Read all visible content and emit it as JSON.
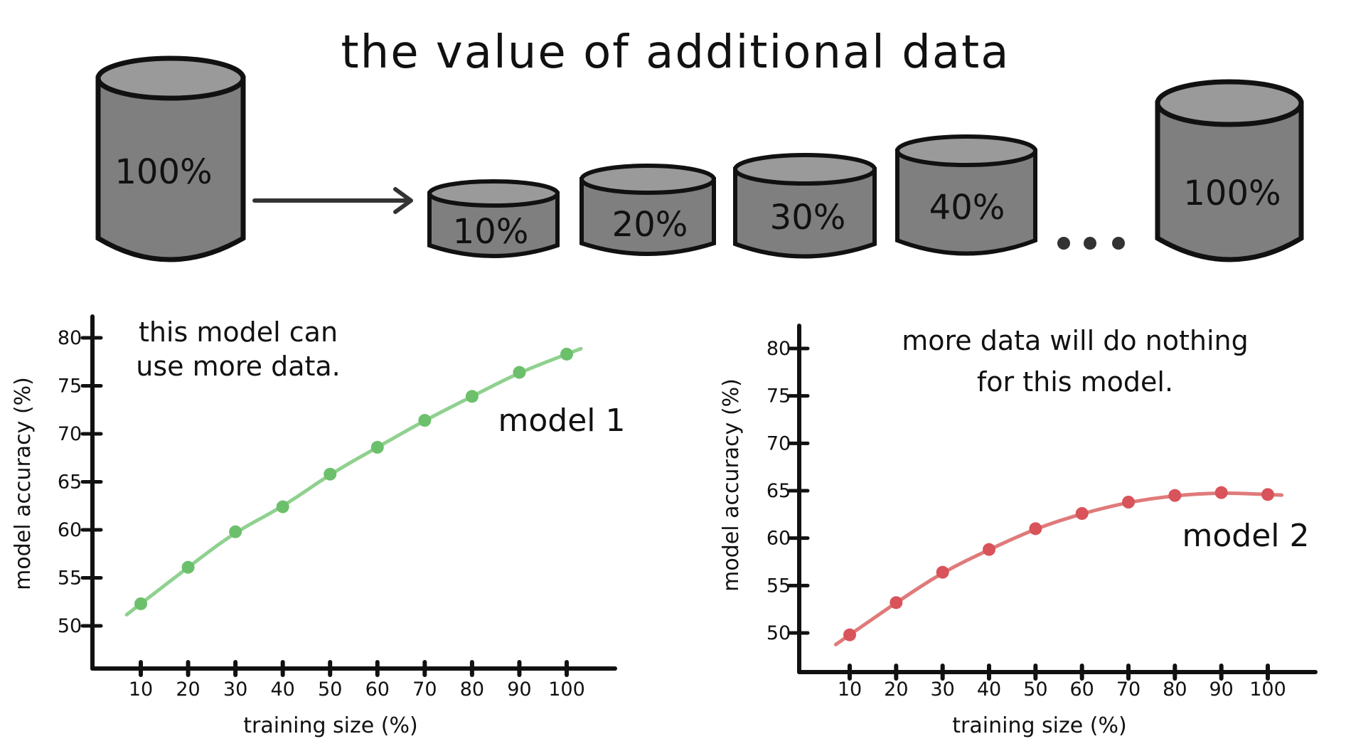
{
  "title": "the value of additional data",
  "cylinders": {
    "source_label": "100%",
    "split_labels": [
      "10%",
      "20%",
      "30%",
      "40%"
    ],
    "ellipsis": "...",
    "full_label": "100%",
    "fill": "#7f7f7f",
    "top_fill": "#9a9a9a"
  },
  "chart_data": [
    {
      "type": "line",
      "annotation": "this model can use more data.",
      "series_label": "model 1",
      "xlabel": "training size (%)",
      "ylabel": "model accuracy (%)",
      "x": [
        10,
        20,
        30,
        40,
        50,
        60,
        70,
        80,
        90,
        100
      ],
      "x_tick_labels": [
        "10",
        "20",
        "30",
        "40",
        "50",
        "60",
        "70",
        "80",
        "90",
        "100"
      ],
      "y_ticks": [
        50,
        55,
        60,
        65,
        70,
        75,
        80
      ],
      "ylim": [
        47,
        81
      ],
      "series": [
        {
          "values": [
            52.3,
            56.1,
            59.8,
            62.4,
            65.8,
            68.6,
            71.4,
            73.9,
            76.4,
            78.3
          ],
          "color": "#8fd18f",
          "point_color": "#6cc06c"
        }
      ]
    },
    {
      "type": "line",
      "annotation": "more data will do nothing for this model.",
      "series_label": "model 2",
      "xlabel": "training size (%)",
      "ylabel": "model accuracy (%)",
      "x": [
        10,
        20,
        30,
        40,
        50,
        60,
        70,
        80,
        90,
        100
      ],
      "x_tick_labels": [
        "10",
        "20",
        "30",
        "40",
        "50",
        "60",
        "70",
        "80",
        "90",
        "100"
      ],
      "y_ticks": [
        50,
        55,
        60,
        65,
        70,
        75,
        80
      ],
      "ylim": [
        46,
        81
      ],
      "series": [
        {
          "values": [
            49.8,
            53.2,
            56.4,
            58.8,
            61.0,
            62.6,
            63.8,
            64.5,
            64.8,
            64.6
          ],
          "color": "#e07a7a",
          "point_color": "#d9535b"
        }
      ]
    }
  ]
}
